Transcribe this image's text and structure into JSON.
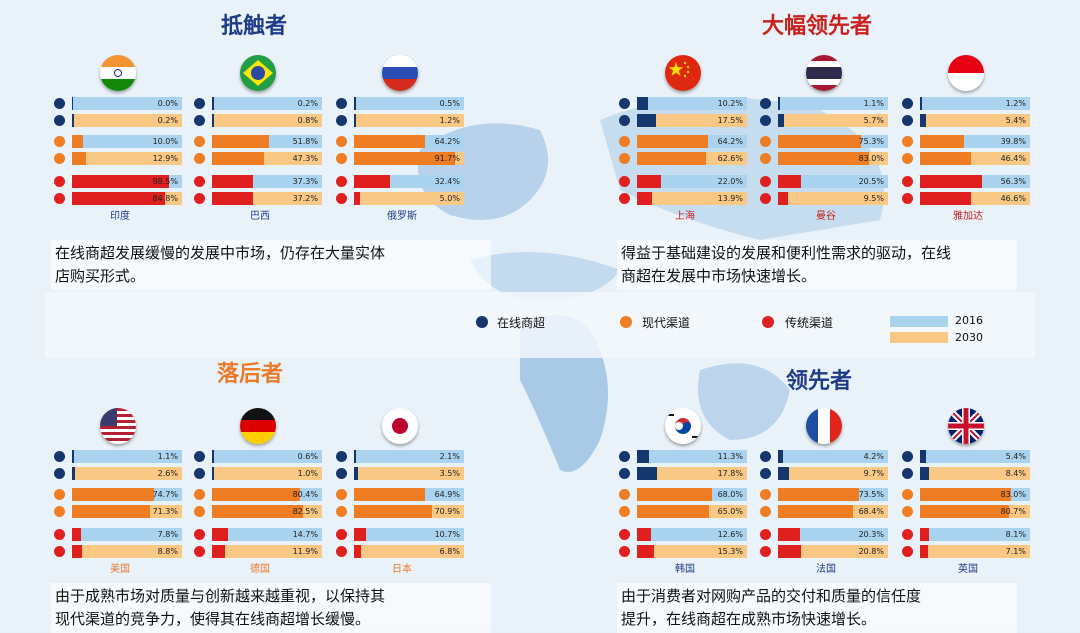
{
  "colors": {
    "online": "#16366e",
    "modern": "#ee7d23",
    "traditional": "#e0201e",
    "bar2016": "#a9d3ee",
    "bar2030": "#f8c884",
    "title_blue": "#1f3d87",
    "title_red": "#c8221f",
    "title_orange": "#ea7a2c",
    "title_navy": "#1f3d87"
  },
  "quadrants": [
    {
      "title": "抵触者",
      "description": [
        "在线商超发展缓慢的发展中市场，仍存在大量实体",
        "店购买形式。"
      ]
    },
    {
      "title": "大幅领先者",
      "description": [
        "得益于基础建设的发展和便利性需求的驱动，在线",
        "商超在发展中市场快速增长。"
      ]
    },
    {
      "title": "落后者",
      "description": [
        "由于成熟市场对质量与创新越来越重视，以保持其",
        "现代渠道的竞争力，使得其在线商超增长缓慢。"
      ]
    },
    {
      "title": "领先者",
      "description": [
        "由于消费者对网购产品的交付和质量的信任度",
        "提升，在线商超在成熟市场快速增长。"
      ]
    }
  ],
  "legend": {
    "online": "在线商超",
    "modern": "现代渠道",
    "traditional": "传统渠道",
    "y2016": "2016",
    "y2030": "2030"
  },
  "chart_data": [
    {
      "type": "bar",
      "name": "印度",
      "flag": "india",
      "values": [
        0.0,
        0.2,
        10.0,
        12.9,
        88.5,
        84.8
      ],
      "labels": [
        "0.0%",
        "0.2%",
        "10.0%",
        "12.9%",
        "88.5%",
        "84.8%"
      ]
    },
    {
      "type": "bar",
      "name": "巴西",
      "flag": "brazil",
      "values": [
        0.2,
        0.8,
        51.8,
        47.3,
        37.3,
        37.2
      ],
      "labels": [
        "0.2%",
        "0.8%",
        "51.8%",
        "47.3%",
        "37.3%",
        "37.2%"
      ]
    },
    {
      "type": "bar",
      "name": "俄罗斯",
      "flag": "russia",
      "values": [
        0.5,
        1.2,
        64.2,
        91.7,
        32.4,
        5.0
      ],
      "labels": [
        "0.5%",
        "1.2%",
        "64.2%",
        "91.7%",
        "32.4%",
        "5.0%"
      ]
    },
    {
      "type": "bar",
      "name": "上海",
      "flag": "china",
      "values": [
        10.2,
        17.5,
        64.2,
        62.6,
        22.0,
        13.9
      ],
      "labels": [
        "10.2%",
        "17.5%",
        "64.2%",
        "62.6%",
        "22.0%",
        "13.9%"
      ]
    },
    {
      "type": "bar",
      "name": "曼谷",
      "flag": "thailand",
      "values": [
        1.1,
        5.7,
        75.3,
        83.0,
        20.5,
        9.5
      ],
      "labels": [
        "1.1%",
        "5.7%",
        "75.3%",
        "83.0%",
        "20.5%",
        "9.5%"
      ]
    },
    {
      "type": "bar",
      "name": "雅加达",
      "flag": "indonesia",
      "values": [
        1.2,
        5.4,
        39.8,
        46.4,
        56.3,
        46.6
      ],
      "labels": [
        "1.2%",
        "5.4%",
        "39.8%",
        "46.4%",
        "56.3%",
        "46.6%"
      ]
    },
    {
      "type": "bar",
      "name": "美国",
      "flag": "usa",
      "values": [
        1.1,
        2.6,
        74.7,
        71.3,
        7.8,
        8.8
      ],
      "labels": [
        "1.1%",
        "2.6%",
        "74.7%",
        "71.3%",
        "7.8%",
        "8.8%"
      ]
    },
    {
      "type": "bar",
      "name": "德国",
      "flag": "germany",
      "values": [
        0.6,
        1.0,
        80.4,
        82.5,
        14.7,
        11.9
      ],
      "labels": [
        "0.6%",
        "1.0%",
        "80.4%",
        "82.5%",
        "14.7%",
        "11.9%"
      ]
    },
    {
      "type": "bar",
      "name": "日本",
      "flag": "japan",
      "values": [
        2.1,
        3.5,
        64.9,
        70.9,
        10.7,
        6.8
      ],
      "labels": [
        "2.1%",
        "3.5%",
        "64.9%",
        "70.9%",
        "10.7%",
        "6.8%"
      ]
    },
    {
      "type": "bar",
      "name": "韩国",
      "flag": "korea",
      "values": [
        11.3,
        17.8,
        68.0,
        65.0,
        12.6,
        15.3
      ],
      "labels": [
        "11.3%",
        "17.8%",
        "68.0%",
        "65.0%",
        "12.6%",
        "15.3%"
      ]
    },
    {
      "type": "bar",
      "name": "法国",
      "flag": "france",
      "values": [
        4.2,
        9.7,
        73.5,
        68.4,
        20.3,
        20.8
      ],
      "labels": [
        "4.2%",
        "9.7%",
        "73.5%",
        "68.4%",
        "20.3%",
        "20.8%"
      ]
    },
    {
      "type": "bar",
      "name": "英国",
      "flag": "uk",
      "values": [
        5.4,
        8.4,
        83.0,
        80.7,
        8.1,
        7.1
      ],
      "labels": [
        "5.4%",
        "8.4%",
        "83.0%",
        "80.7%",
        "8.1%",
        "7.1%"
      ]
    }
  ]
}
